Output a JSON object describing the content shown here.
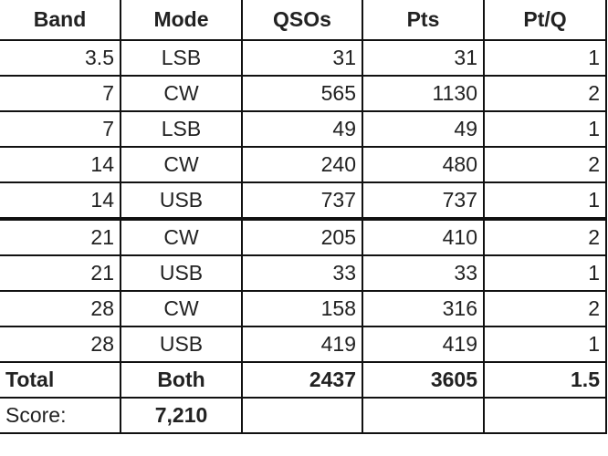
{
  "headers": [
    "Band",
    "Mode",
    "QSOs",
    "Pts",
    "Pt/Q"
  ],
  "rows": [
    [
      "3.5",
      "LSB",
      "31",
      "31",
      "1"
    ],
    [
      "7",
      "CW",
      "565",
      "1130",
      "2"
    ],
    [
      "7",
      "LSB",
      "49",
      "49",
      "1"
    ],
    [
      "14",
      "CW",
      "240",
      "480",
      "2"
    ],
    [
      "14",
      "USB",
      "737",
      "737",
      "1"
    ],
    [
      "21",
      "CW",
      "205",
      "410",
      "2"
    ],
    [
      "21",
      "USB",
      "33",
      "33",
      "1"
    ],
    [
      "28",
      "CW",
      "158",
      "316",
      "2"
    ],
    [
      "28",
      "USB",
      "419",
      "419",
      "1"
    ]
  ],
  "total": [
    "Total",
    "Both",
    "2437",
    "3605",
    "1.5"
  ],
  "score": {
    "label": "Score:",
    "value": "7,210"
  }
}
